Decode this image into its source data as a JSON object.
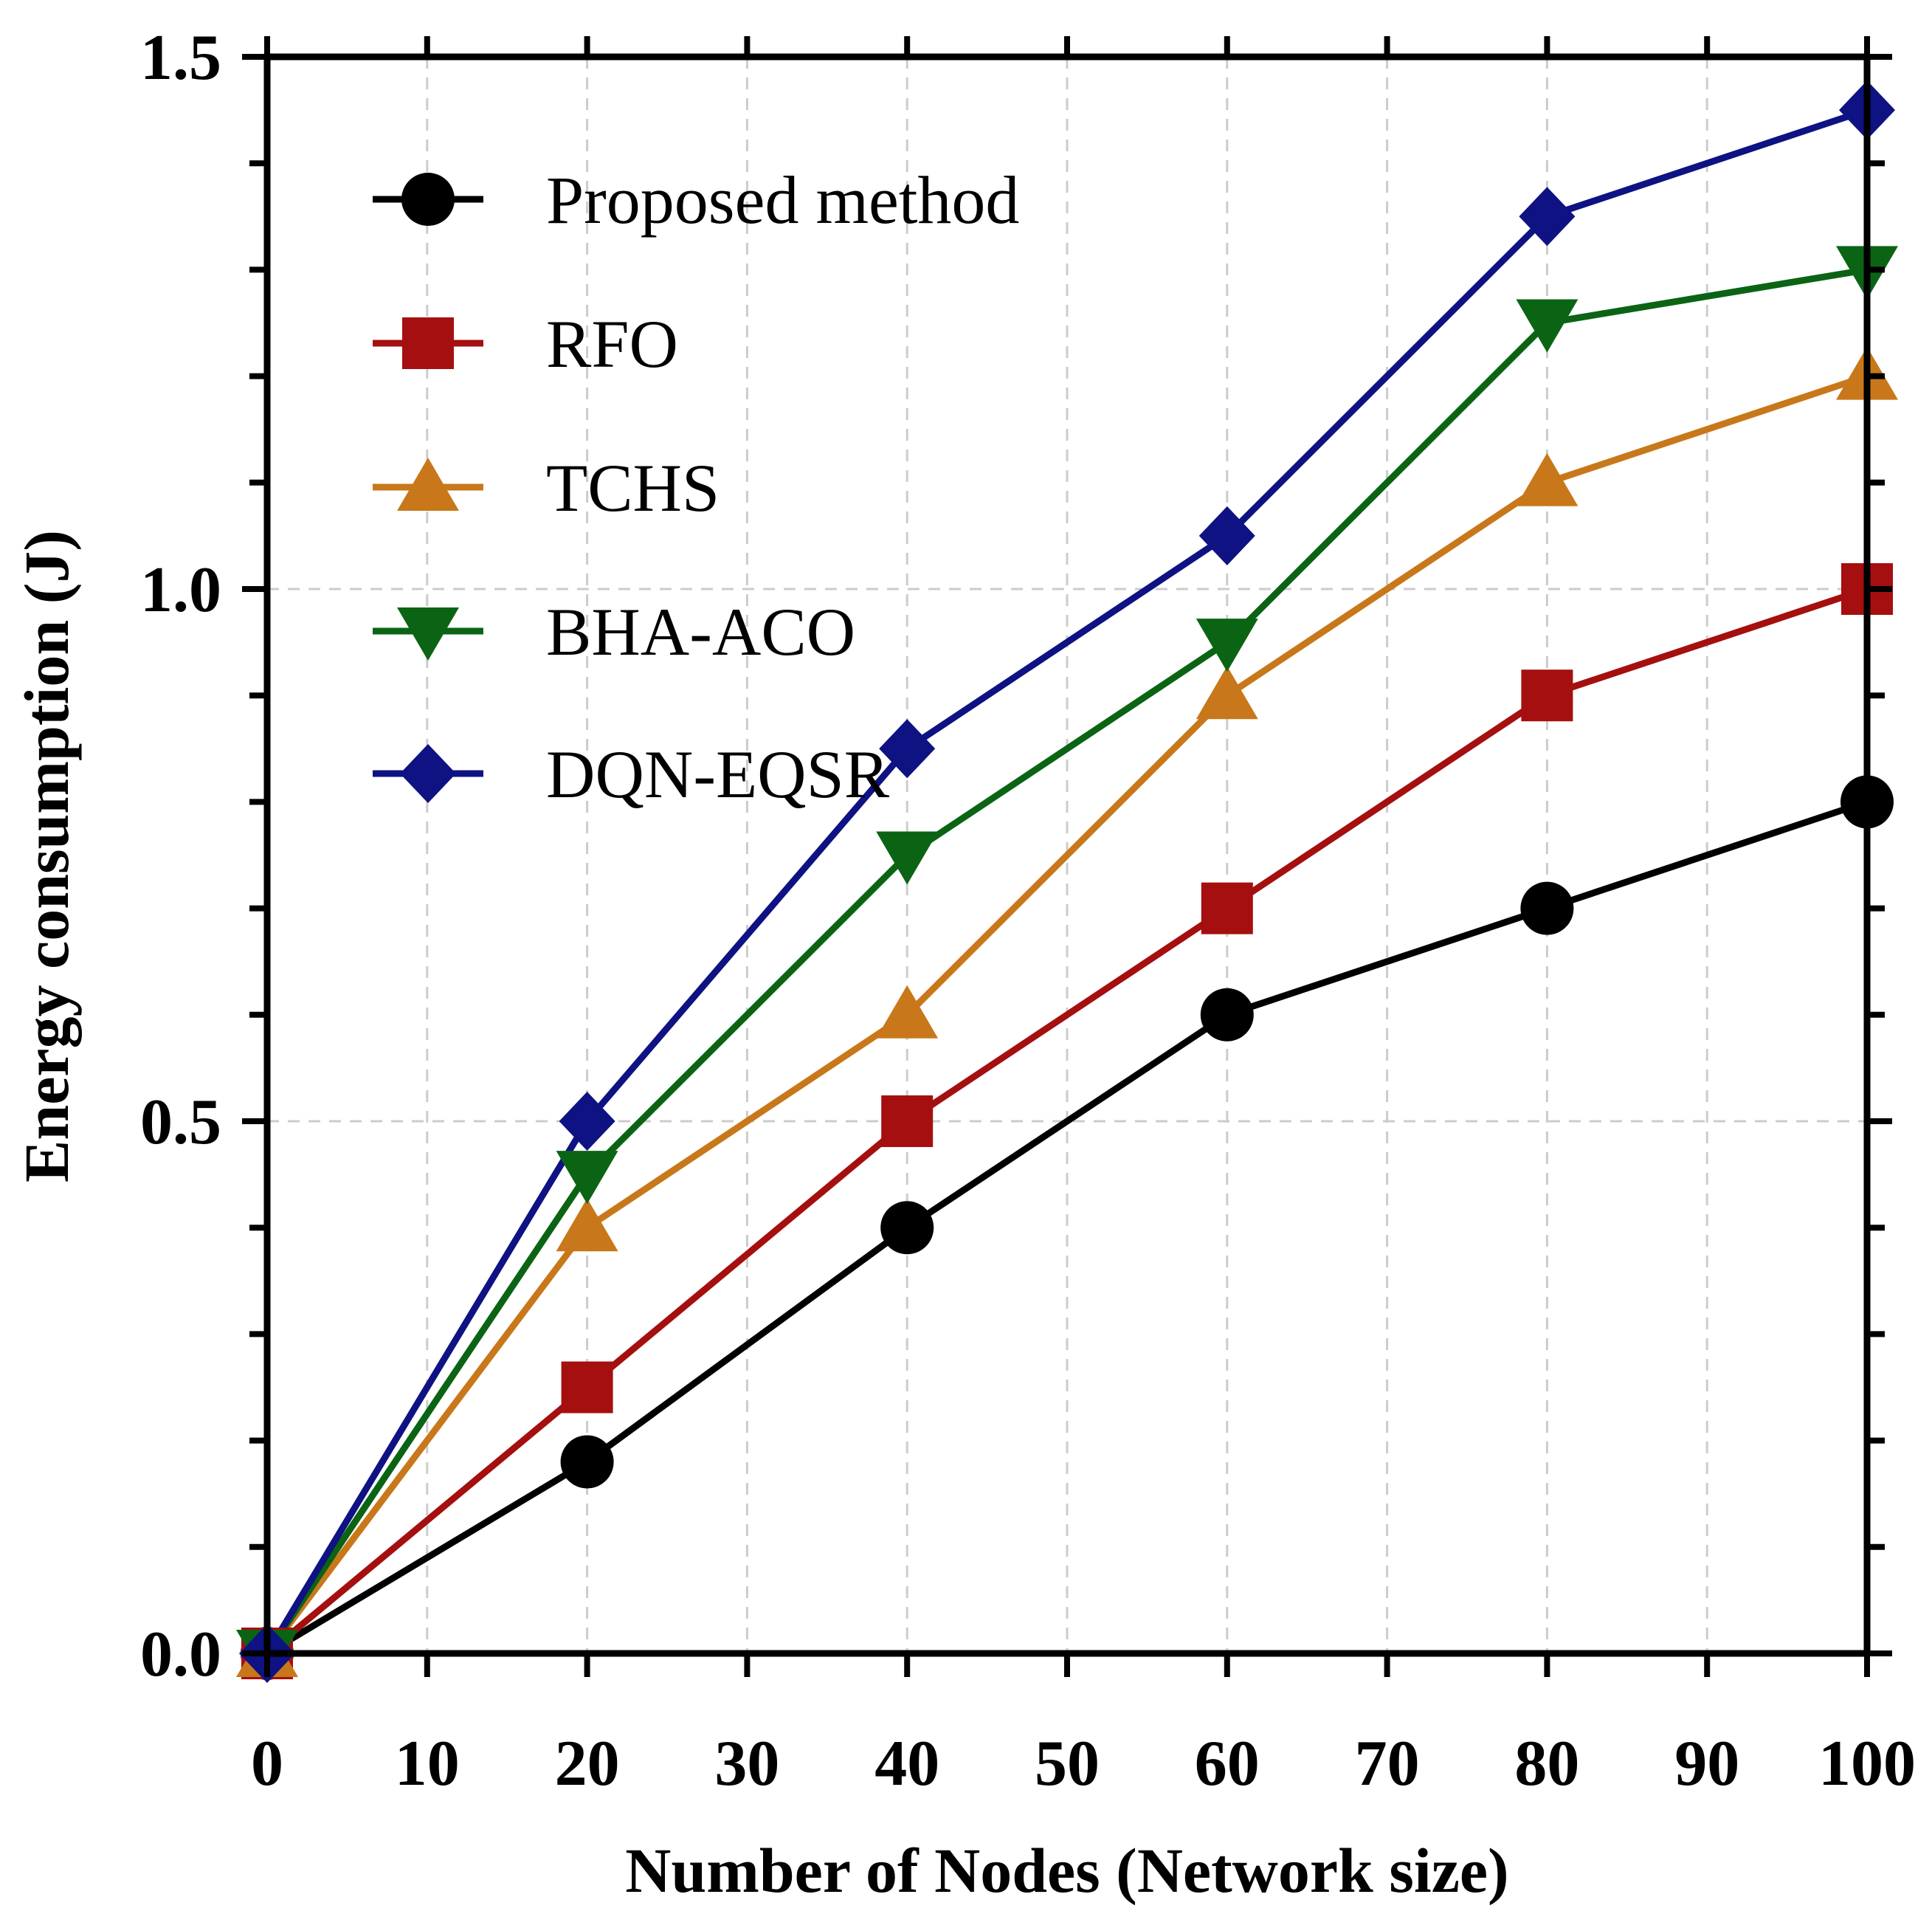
{
  "chart_data": {
    "type": "line",
    "title": "",
    "xlabel": "Number of Nodes (Network size)",
    "ylabel": "Energy consumption (J)",
    "xlim": [
      0,
      100
    ],
    "ylim": [
      0,
      1.5
    ],
    "x_ticks": [
      0,
      10,
      20,
      30,
      40,
      50,
      60,
      70,
      80,
      90,
      100
    ],
    "x_tick_labels": [
      "0",
      "10",
      "20",
      "30",
      "40",
      "50",
      "60",
      "70",
      "80",
      "90",
      "100"
    ],
    "y_ticks": [
      0.0,
      0.5,
      1.0,
      1.5
    ],
    "y_tick_labels": [
      "0.0",
      "0.5",
      "1.0",
      "1.5"
    ],
    "y_minor_step": 0.1,
    "grid": true,
    "legend_position": "top-left",
    "x": [
      0,
      20,
      40,
      60,
      80,
      100
    ],
    "series": [
      {
        "name": "Proposed method",
        "color": "#000000",
        "marker": "circle",
        "values": [
          0,
          0.18,
          0.4,
          0.6,
          0.7,
          0.8
        ]
      },
      {
        "name": "RFO",
        "color": "#A50F0F",
        "marker": "square",
        "values": [
          0,
          0.25,
          0.5,
          0.7,
          0.9,
          1.0
        ]
      },
      {
        "name": "TCHS",
        "color": "#C8781A",
        "marker": "triangle-up",
        "values": [
          0,
          0.4,
          0.6,
          0.9,
          1.1,
          1.2
        ]
      },
      {
        "name": "BHA-ACO",
        "color": "#0B6414",
        "marker": "triangle-down",
        "values": [
          0,
          0.45,
          0.75,
          0.95,
          1.25,
          1.3
        ]
      },
      {
        "name": "DQN-EQSR",
        "color": "#0E1282",
        "marker": "diamond",
        "values": [
          0,
          0.5,
          0.85,
          1.05,
          1.35,
          1.45
        ]
      }
    ]
  }
}
